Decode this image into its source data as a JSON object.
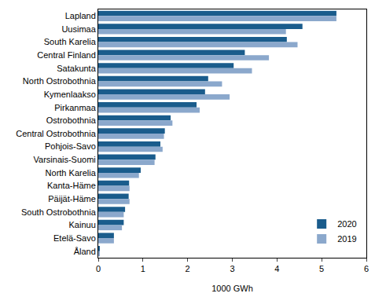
{
  "chart_data": {
    "type": "bar",
    "orientation": "horizontal",
    "xlabel": "1000 GWh",
    "categories": [
      "Lapland",
      "Uusimaa",
      "South Karelia",
      "Central Finland",
      "Satakunta",
      "North Ostrobothnia",
      "Kymenlaakso",
      "Pirkanmaa",
      "Ostrobothnia",
      "Central Ostrobothnia",
      "Pohjois-Savo",
      "Varsinais-Suomi",
      "North Karelia",
      "Kanta-Häme",
      "Päijät-Häme",
      "South Ostrobothnia",
      "Kainuu",
      "Etelä-Savo",
      "Åland"
    ],
    "series": [
      {
        "name": "2020",
        "color": "#1a5c8c",
        "values": [
          5.33,
          4.57,
          4.22,
          3.28,
          3.03,
          2.46,
          2.39,
          2.2,
          1.62,
          1.49,
          1.39,
          1.28,
          0.95,
          0.69,
          0.68,
          0.6,
          0.57,
          0.35,
          0.02
        ]
      },
      {
        "name": "2019",
        "color": "#8ba8cc",
        "values": [
          5.33,
          4.2,
          4.46,
          3.82,
          3.44,
          2.77,
          2.94,
          2.27,
          1.66,
          1.47,
          1.44,
          1.26,
          0.91,
          0.7,
          0.7,
          0.57,
          0.53,
          0.35,
          0.02
        ]
      }
    ],
    "xlim": [
      0,
      6
    ],
    "xticks": [
      0,
      1,
      2,
      3,
      4,
      5,
      6
    ],
    "grid": false,
    "legend": "lower right"
  }
}
